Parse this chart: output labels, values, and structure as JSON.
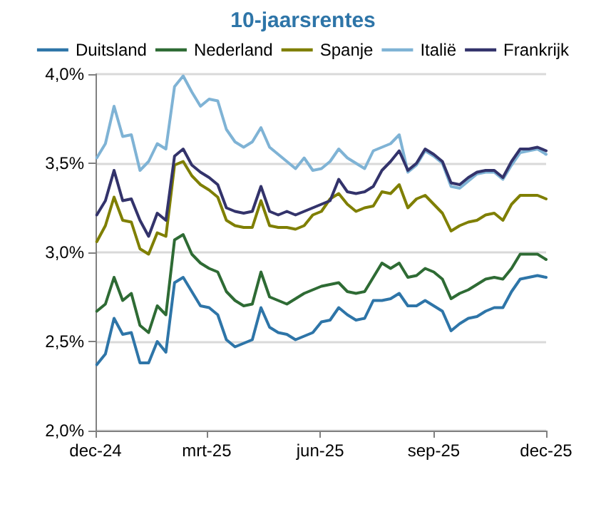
{
  "chart_data": {
    "type": "line",
    "title": "10-jaarsrentes",
    "x": [
      "2024-12-02",
      "2024-12-09",
      "2024-12-16",
      "2024-12-23",
      "2024-12-30",
      "2025-01-06",
      "2025-01-13",
      "2025-01-20",
      "2025-01-27",
      "2025-02-03",
      "2025-02-10",
      "2025-02-17",
      "2025-02-24",
      "2025-03-03",
      "2025-03-10",
      "2025-03-17",
      "2025-03-24",
      "2025-03-31",
      "2025-04-07",
      "2025-04-14",
      "2025-04-21",
      "2025-04-28",
      "2025-05-05",
      "2025-05-12",
      "2025-05-19",
      "2025-05-26",
      "2025-06-02",
      "2025-06-09",
      "2025-06-16",
      "2025-06-23",
      "2025-06-30",
      "2025-07-07",
      "2025-07-14",
      "2025-07-21",
      "2025-07-28",
      "2025-08-04",
      "2025-08-11",
      "2025-08-18",
      "2025-08-25",
      "2025-09-01",
      "2025-09-08",
      "2025-09-15",
      "2025-09-22",
      "2025-09-29",
      "2025-10-06",
      "2025-10-13",
      "2025-10-20",
      "2025-10-27",
      "2025-11-03",
      "2025-11-10",
      "2025-11-17",
      "2025-11-24",
      "2025-12-01"
    ],
    "series": [
      {
        "name": "Duitsland",
        "color": "#2e75a8",
        "values": [
          2.37,
          2.43,
          2.63,
          2.54,
          2.55,
          2.38,
          2.38,
          2.5,
          2.44,
          2.83,
          2.86,
          2.78,
          2.7,
          2.69,
          2.65,
          2.51,
          2.47,
          2.49,
          2.51,
          2.69,
          2.58,
          2.55,
          2.54,
          2.51,
          2.53,
          2.55,
          2.61,
          2.62,
          2.69,
          2.65,
          2.62,
          2.63,
          2.73,
          2.73,
          2.74,
          2.77,
          2.7,
          2.7,
          2.73,
          2.7,
          2.67,
          2.56,
          2.6,
          2.63,
          2.64,
          2.67,
          2.69,
          2.69,
          2.78,
          2.85,
          2.86,
          2.87,
          2.86
        ]
      },
      {
        "name": "Nederland",
        "color": "#2e6b34",
        "values": [
          2.67,
          2.71,
          2.86,
          2.73,
          2.77,
          2.59,
          2.55,
          2.7,
          2.65,
          3.07,
          3.1,
          2.99,
          2.94,
          2.91,
          2.89,
          2.78,
          2.73,
          2.7,
          2.71,
          2.89,
          2.75,
          2.73,
          2.71,
          2.74,
          2.77,
          2.79,
          2.81,
          2.82,
          2.83,
          2.78,
          2.77,
          2.78,
          2.86,
          2.94,
          2.91,
          2.94,
          2.86,
          2.87,
          2.91,
          2.89,
          2.85,
          2.74,
          2.77,
          2.79,
          2.82,
          2.85,
          2.86,
          2.85,
          2.91,
          2.99,
          2.99,
          2.99,
          2.96
        ]
      },
      {
        "name": "Spanje",
        "color": "#7f7f00",
        "values": [
          3.06,
          3.15,
          3.31,
          3.18,
          3.17,
          3.02,
          2.99,
          3.11,
          3.09,
          3.49,
          3.51,
          3.43,
          3.38,
          3.35,
          3.31,
          3.18,
          3.15,
          3.14,
          3.14,
          3.29,
          3.15,
          3.14,
          3.14,
          3.13,
          3.15,
          3.21,
          3.23,
          3.3,
          3.33,
          3.27,
          3.23,
          3.25,
          3.26,
          3.34,
          3.33,
          3.38,
          3.25,
          3.3,
          3.32,
          3.27,
          3.22,
          3.12,
          3.15,
          3.17,
          3.18,
          3.21,
          3.22,
          3.18,
          3.27,
          3.32,
          3.32,
          3.32,
          3.3
        ]
      },
      {
        "name": "Italië",
        "color": "#7fb3d5",
        "values": [
          3.53,
          3.61,
          3.82,
          3.65,
          3.66,
          3.46,
          3.51,
          3.61,
          3.58,
          3.93,
          3.99,
          3.9,
          3.82,
          3.86,
          3.85,
          3.69,
          3.62,
          3.59,
          3.62,
          3.7,
          3.59,
          3.55,
          3.51,
          3.47,
          3.53,
          3.46,
          3.47,
          3.51,
          3.58,
          3.53,
          3.5,
          3.47,
          3.57,
          3.59,
          3.61,
          3.66,
          3.45,
          3.49,
          3.57,
          3.54,
          3.5,
          3.37,
          3.36,
          3.4,
          3.44,
          3.45,
          3.45,
          3.41,
          3.49,
          3.56,
          3.57,
          3.58,
          3.55
        ]
      },
      {
        "name": "Frankrijk",
        "color": "#33336b",
        "values": [
          3.21,
          3.29,
          3.46,
          3.29,
          3.3,
          3.18,
          3.09,
          3.22,
          3.18,
          3.54,
          3.58,
          3.49,
          3.45,
          3.42,
          3.38,
          3.25,
          3.23,
          3.22,
          3.23,
          3.37,
          3.23,
          3.21,
          3.23,
          3.21,
          3.23,
          3.25,
          3.27,
          3.29,
          3.41,
          3.34,
          3.33,
          3.34,
          3.37,
          3.46,
          3.51,
          3.57,
          3.46,
          3.5,
          3.58,
          3.55,
          3.51,
          3.39,
          3.38,
          3.42,
          3.45,
          3.46,
          3.46,
          3.42,
          3.51,
          3.58,
          3.58,
          3.59,
          3.57
        ]
      }
    ],
    "xlim": [
      "2024-12-01",
      "2025-12-01"
    ],
    "xticks": [
      {
        "value": "2024-12-01",
        "label": "dec-24"
      },
      {
        "value": "2025-03-01",
        "label": "mrt-25"
      },
      {
        "value": "2025-06-01",
        "label": "jun-25"
      },
      {
        "value": "2025-09-01",
        "label": "sep-25"
      },
      {
        "value": "2025-12-01",
        "label": "dec-25"
      }
    ],
    "ylim": [
      2,
      4
    ],
    "yticks": [
      {
        "value": 2,
        "label": "2,0%"
      },
      {
        "value": 2.5,
        "label": "2,5%"
      },
      {
        "value": 3,
        "label": "3,0%"
      },
      {
        "value": 3.5,
        "label": "3,5%"
      },
      {
        "value": 4,
        "label": "4,0%"
      }
    ],
    "grid": "y",
    "legend": "top",
    "marker": "none",
    "line_style": "solid"
  }
}
